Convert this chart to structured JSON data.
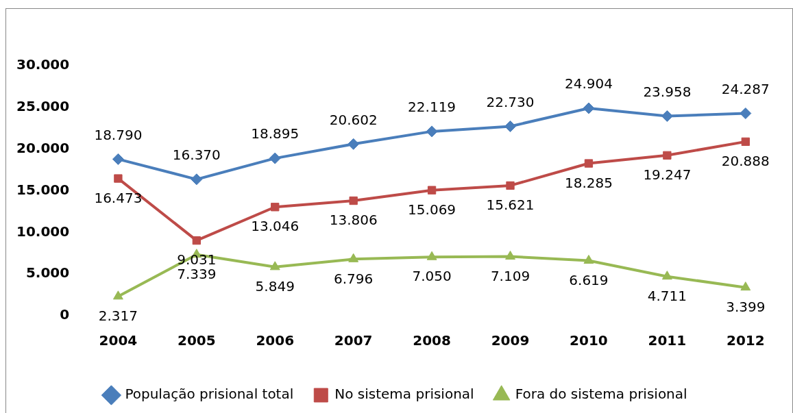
{
  "chart_data": {
    "type": "line",
    "categories": [
      "2004",
      "2005",
      "2006",
      "2007",
      "2008",
      "2009",
      "2010",
      "2011",
      "2012"
    ],
    "series": [
      {
        "name": "População prisional total",
        "color": "#4a7ebb",
        "marker": "diamond",
        "values": [
          18790,
          16370,
          18895,
          20602,
          22119,
          22730,
          24904,
          23958,
          24287
        ],
        "value_labels": [
          "18.790",
          "16.370",
          "18.895",
          "20.602",
          "22.119",
          "22.730",
          "24.904",
          "23.958",
          "24.287"
        ]
      },
      {
        "name": "No sistema prisional",
        "color": "#be4b48",
        "marker": "square",
        "values": [
          16473,
          9031,
          13046,
          13806,
          15069,
          15621,
          18285,
          19247,
          20888
        ],
        "value_labels": [
          "16.473",
          "9.031",
          "13.046",
          "13.806",
          "15.069",
          "15.621",
          "18.285",
          "19.247",
          "20.888"
        ]
      },
      {
        "name": "Fora do sistema prisional",
        "color": "#98b954",
        "marker": "triangle",
        "values": [
          2317,
          7339,
          5849,
          6796,
          7050,
          7109,
          6619,
          4711,
          3399
        ],
        "value_labels": [
          "2.317",
          "7.339",
          "5.849",
          "6.796",
          "7.050",
          "7.109",
          "6.619",
          "4.711",
          "3.399"
        ]
      }
    ],
    "ylim": [
      0,
      30000
    ],
    "yticks": [
      {
        "value": 0,
        "label": "0"
      },
      {
        "value": 5000,
        "label": "5.000"
      },
      {
        "value": 10000,
        "label": "10.000"
      },
      {
        "value": 15000,
        "label": "15.000"
      },
      {
        "value": 20000,
        "label": "20.000"
      },
      {
        "value": 25000,
        "label": "25.000"
      },
      {
        "value": 30000,
        "label": "30.000"
      }
    ],
    "grid": false,
    "legend": "bottom",
    "line_style": "solid"
  }
}
